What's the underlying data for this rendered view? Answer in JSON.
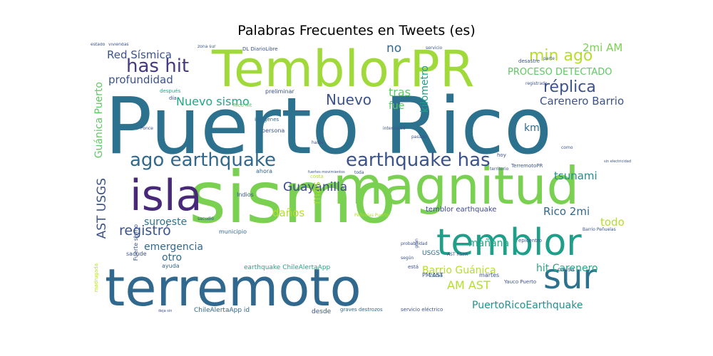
{
  "chart_data": {
    "type": "wordcloud",
    "title": "Palabras Frecuentes en Tweets (es)",
    "colormap": "viridis",
    "words": [
      {
        "text": "Puerto Rico",
        "size": 110,
        "color": "#2c728e"
      },
      {
        "text": "sismo",
        "size": 100,
        "color": "#7ad151"
      },
      {
        "text": "magnitud",
        "size": 72,
        "color": "#7ad151"
      },
      {
        "text": "TemblorPR",
        "size": 70,
        "color": "#9fda3a"
      },
      {
        "text": "terremoto",
        "size": 72,
        "color": "#31688e"
      },
      {
        "text": "temblor",
        "size": 52,
        "color": "#1f9e89"
      },
      {
        "text": "isla",
        "size": 60,
        "color": "#482878"
      },
      {
        "text": "sur",
        "size": 48,
        "color": "#2c728e"
      },
      {
        "text": "earthquake has",
        "size": 26,
        "color": "#3b528b"
      },
      {
        "text": "ago earthquake",
        "size": 26,
        "color": "#31688e"
      },
      {
        "text": "has hit",
        "size": 26,
        "color": "#443983"
      },
      {
        "text": "min ago",
        "size": 22,
        "color": "#b5de2b"
      },
      {
        "text": "réplica",
        "size": 22,
        "color": "#3b528b"
      },
      {
        "text": "Nuevo",
        "size": 20,
        "color": "#3b528b"
      },
      {
        "text": "Nuevo sismo",
        "size": 16,
        "color": "#22a884"
      },
      {
        "text": "Guayanilla",
        "size": 17,
        "color": "#3e4989"
      },
      {
        "text": "registró",
        "size": 19,
        "color": "#3b528b"
      },
      {
        "text": "tsunami",
        "size": 15,
        "color": "#228c8d"
      },
      {
        "text": "Red Sísmica",
        "size": 15,
        "color": "#3b528b"
      },
      {
        "text": "profundidad",
        "size": 15,
        "color": "#3b528b"
      },
      {
        "text": "Carenero Barrio",
        "size": 15,
        "color": "#3b528b"
      },
      {
        "text": "PROCESO DETECTADO",
        "size": 13,
        "color": "#5ec962"
      },
      {
        "text": "2mi AM",
        "size": 15,
        "color": "#7ad151"
      },
      {
        "text": "no",
        "size": 17,
        "color": "#31688e"
      },
      {
        "text": "tras",
        "size": 16,
        "color": "#5ec962"
      },
      {
        "text": "fue",
        "size": 14,
        "color": "#5ec962"
      },
      {
        "text": "kilómetro",
        "size": 14,
        "color": "#1f9e89"
      },
      {
        "text": "km",
        "size": 14,
        "color": "#31688e"
      },
      {
        "text": "más",
        "size": 15,
        "color": "#a5db36"
      },
      {
        "text": "daños",
        "size": 15,
        "color": "#b5de2b"
      },
      {
        "text": "suroeste",
        "size": 14,
        "color": "#2c728e"
      },
      {
        "text": "emergencia",
        "size": 14,
        "color": "#31688e"
      },
      {
        "text": "otro",
        "size": 14,
        "color": "#31688e"
      },
      {
        "text": "Rico 2mi",
        "size": 15,
        "color": "#31688e"
      },
      {
        "text": "todo",
        "size": 15,
        "color": "#b5de2b"
      },
      {
        "text": "mañana",
        "size": 14,
        "color": "#22a884"
      },
      {
        "text": "hit Carenero",
        "size": 14,
        "color": "#22a884"
      },
      {
        "text": "Barrio Guánica",
        "size": 14,
        "color": "#b5de2b"
      },
      {
        "text": "AM AST",
        "size": 16,
        "color": "#b5de2b"
      },
      {
        "text": "PuertoRicoEarthquake",
        "size": 14,
        "color": "#21918c"
      },
      {
        "text": "temblor earthquake",
        "size": 10,
        "color": "#3e4989"
      },
      {
        "text": "AST USGS",
        "size": 17,
        "color": "#3b528b"
      },
      {
        "text": "Guánica Puerto",
        "size": 14,
        "color": "#5ec962"
      },
      {
        "text": "earthquake ChileAlertaApp",
        "size": 9,
        "color": "#22a884"
      },
      {
        "text": "ChileAlertaApp id",
        "size": 9,
        "color": "#31688e"
      },
      {
        "text": "desde",
        "size": 9,
        "color": "#3b528b"
      },
      {
        "text": "graves destrozos",
        "size": 7,
        "color": "#31688e"
      },
      {
        "text": "servicio eléctrico",
        "size": 7,
        "color": "#3b528b"
      },
      {
        "text": "Indios",
        "size": 8,
        "color": "#3b528b"
      },
      {
        "text": "Fuerte sismo",
        "size": 8,
        "color": "#3b528b"
      },
      {
        "text": "municipio",
        "size": 8,
        "color": "#31688e"
      },
      {
        "text": "sacude",
        "size": 8,
        "color": "#3b528b"
      },
      {
        "text": "ayuda",
        "size": 8,
        "color": "#31688e"
      },
      {
        "text": "madrugada",
        "size": 7,
        "color": "#b5de2b"
      },
      {
        "text": "USGS",
        "size": 9,
        "color": "#31688e"
      },
      {
        "text": "PM AST",
        "size": 8,
        "color": "#3b528b"
      },
      {
        "text": "zona",
        "size": 8,
        "color": "#31688e"
      },
      {
        "text": "martes",
        "size": 8,
        "color": "#3b528b"
      },
      {
        "text": "Yauco Puerto",
        "size": 7,
        "color": "#3b528b"
      },
      {
        "text": "epicentro",
        "size": 7,
        "color": "#3b528b"
      },
      {
        "text": "causa",
        "size": 8,
        "color": "#3b528b"
      },
      {
        "text": "imágenes",
        "size": 7,
        "color": "#31688e"
      },
      {
        "text": "persona",
        "size": 8,
        "color": "#3b528b"
      },
      {
        "text": "preliminar",
        "size": 8,
        "color": "#3b528b"
      },
      {
        "text": "ahora",
        "size": 8,
        "color": "#31688e"
      },
      {
        "text": "costa",
        "size": 7,
        "color": "#b5de2b"
      },
      {
        "text": "hoy",
        "size": 7,
        "color": "#3b528b"
      },
      {
        "text": "TerremotoPR",
        "size": 7,
        "color": "#3b528b"
      },
      {
        "text": "desastre",
        "size": 7,
        "color": "#3b528b"
      },
      {
        "text": "intensidad",
        "size": 6,
        "color": "#3b528b"
      },
      {
        "text": "pasado",
        "size": 6,
        "color": "#3b528b"
      },
      {
        "text": "registrado",
        "size": 6,
        "color": "#3b528b"
      },
      {
        "text": "viviendas",
        "size": 6,
        "color": "#3b528b"
      },
      {
        "text": "zona sur",
        "size": 6,
        "color": "#3b528b"
      },
      {
        "text": "DL DiarioLibre",
        "size": 7,
        "color": "#3b528b"
      },
      {
        "text": "Ponce",
        "size": 6,
        "color": "#3b528b"
      },
      {
        "text": "después",
        "size": 7,
        "color": "#22a884"
      },
      {
        "text": "día",
        "size": 7,
        "color": "#3b528b"
      },
      {
        "text": "Rico hit",
        "size": 7,
        "color": "#5ec962"
      },
      {
        "text": "hasta",
        "size": 6,
        "color": "#3b528b"
      },
      {
        "text": "está",
        "size": 7,
        "color": "#3b528b"
      },
      {
        "text": "probabilidad",
        "size": 6,
        "color": "#3b528b"
      },
      {
        "text": "Barrio Peñuelas",
        "size": 6,
        "color": "#3b528b"
      },
      {
        "text": "según",
        "size": 6,
        "color": "#3b528b"
      },
      {
        "text": "gran",
        "size": 6,
        "color": "#3b528b"
      },
      {
        "text": "sacudió",
        "size": 6,
        "color": "#3b528b"
      },
      {
        "text": "Peñuelas Puerto",
        "size": 6,
        "color": "#b5de2b"
      },
      {
        "text": "sin electricidad",
        "size": 5,
        "color": "#3b528b"
      },
      {
        "text": "territorio",
        "size": 6,
        "color": "#3b528b"
      },
      {
        "text": "toda",
        "size": 6,
        "color": "#3b528b"
      },
      {
        "text": "fuertes movimientos",
        "size": 5,
        "color": "#3b528b"
      },
      {
        "text": "como",
        "size": 6,
        "color": "#3b528b"
      },
      {
        "text": "deja sin",
        "size": 5,
        "color": "#3b528b"
      },
      {
        "text": "AST RSPR",
        "size": 6,
        "color": "#3b528b"
      },
      {
        "text": "parte",
        "size": 6,
        "color": "#3b528b"
      },
      {
        "text": "servicio",
        "size": 6,
        "color": "#3b528b"
      },
      {
        "text": "estado",
        "size": 6,
        "color": "#3b528b"
      }
    ]
  }
}
